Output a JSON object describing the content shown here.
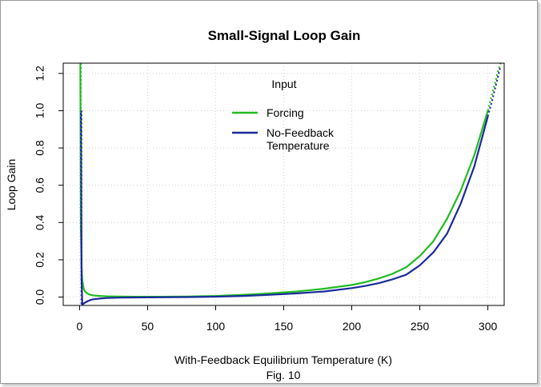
{
  "chart_data": {
    "type": "line",
    "title": "Small-Signal Loop Gain",
    "xlabel": "With-Feedback Equilibrium Temperature (K)",
    "ylabel": "Loop Gain",
    "caption": "Fig. 10",
    "xlim": [
      -12,
      312
    ],
    "ylim": [
      -0.045,
      1.255
    ],
    "xticks": [
      0,
      50,
      100,
      150,
      200,
      250,
      300
    ],
    "yticks": [
      0.0,
      0.2,
      0.4,
      0.6,
      0.8,
      1.0,
      1.2
    ],
    "grid": true,
    "legend": {
      "title": "Input",
      "placement": "top-center",
      "entries": [
        {
          "label": "Forcing",
          "color": "#22bb22"
        },
        {
          "label": "No-Feedback\nTemperature",
          "color": "#1a2a9c"
        }
      ]
    },
    "series": [
      {
        "name": "Forcing",
        "color": "#22bb22",
        "x": [
          0.6,
          1,
          1.5,
          2,
          3,
          4,
          6,
          8,
          10,
          15,
          20,
          30,
          40,
          60,
          80,
          100,
          120,
          140,
          160,
          180,
          200,
          210,
          220,
          230,
          240,
          250,
          260,
          270,
          280,
          290,
          300
        ],
        "values": [
          1.25,
          0.36,
          0.16,
          0.09,
          0.045,
          0.03,
          0.018,
          0.012,
          0.009,
          0.006,
          0.004,
          0.003,
          0.002,
          0.002,
          0.003,
          0.006,
          0.012,
          0.02,
          0.03,
          0.045,
          0.065,
          0.08,
          0.1,
          0.125,
          0.16,
          0.22,
          0.3,
          0.42,
          0.57,
          0.76,
          1.0
        ],
        "dotted_x": [
          300,
          302,
          305,
          307,
          310
        ],
        "dotted_values": [
          1.0,
          1.06,
          1.14,
          1.2,
          1.27
        ]
      },
      {
        "name": "No-Feedback\nTemperature",
        "color": "#1a2a9c",
        "x": [
          1,
          1.5,
          2,
          3,
          4,
          6,
          8,
          10,
          15,
          20,
          30,
          40,
          60,
          80,
          100,
          120,
          140,
          160,
          180,
          200,
          210,
          220,
          230,
          240,
          250,
          260,
          270,
          280,
          290,
          300
        ],
        "values": [
          1.0,
          0.1,
          -0.04,
          -0.035,
          -0.03,
          -0.022,
          -0.016,
          -0.012,
          -0.008,
          -0.005,
          -0.003,
          -0.002,
          -0.001,
          0.0,
          0.002,
          0.006,
          0.012,
          0.02,
          0.03,
          0.048,
          0.06,
          0.075,
          0.095,
          0.12,
          0.17,
          0.24,
          0.34,
          0.5,
          0.7,
          0.97
        ],
        "dotted_x": [
          300,
          303,
          306,
          309
        ],
        "dotted_values": [
          0.97,
          1.05,
          1.14,
          1.23
        ]
      }
    ],
    "asymptote_lines": [
      {
        "series": "Forcing",
        "x": 0.9,
        "y_from": 1.255,
        "y_to": 0.36,
        "color": "#22bb22"
      },
      {
        "series": "No-Feedback\nTemperature",
        "x": 1.4,
        "y_from": 1.0,
        "y_to": -0.045,
        "color": "#1a2a9c"
      }
    ]
  }
}
